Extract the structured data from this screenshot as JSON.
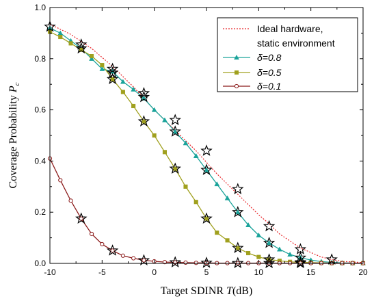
{
  "chart_data": {
    "type": "line",
    "xlabel": "Target SDINR T(dB)",
    "ylabel": "Coverage Probability P_c",
    "xlim": [
      -10,
      20
    ],
    "ylim": [
      0,
      1.0
    ],
    "x_ticks": [
      "-10",
      "-5",
      "0",
      "5",
      "10",
      "15",
      "20"
    ],
    "y_ticks": [
      "0.0",
      "0.2",
      "0.4",
      "0.6",
      "0.8",
      "1.0"
    ],
    "grid": false,
    "legend_position": "top-right",
    "series": [
      {
        "name": "Ideal hardware, static environment",
        "legend_lines": [
          "Ideal hardware,",
          "static environment"
        ],
        "color": "#e8262a",
        "style": "dotted",
        "marker": "none",
        "x": [
          -10,
          -8,
          -6,
          -4,
          -2,
          -1,
          0,
          2,
          4,
          5,
          6,
          8,
          10,
          11,
          12,
          14,
          16,
          17,
          18,
          20
        ],
        "y": [
          0.935,
          0.895,
          0.84,
          0.77,
          0.69,
          0.645,
          0.6,
          0.52,
          0.44,
          0.395,
          0.35,
          0.27,
          0.19,
          0.155,
          0.115,
          0.06,
          0.025,
          0.015,
          0.008,
          0.003
        ]
      },
      {
        "name": "δ=0.8",
        "color": "#1aa39a",
        "style": "solid",
        "marker": "triangle",
        "x": [
          -10,
          -9,
          -8,
          -7,
          -6,
          -5,
          -4,
          -3,
          -2,
          -1,
          0,
          1,
          2,
          3,
          4,
          5,
          6,
          7,
          8,
          9,
          10,
          11,
          12,
          13,
          14,
          15,
          16,
          17,
          18,
          19,
          20
        ],
        "y": [
          0.92,
          0.9,
          0.87,
          0.84,
          0.8,
          0.76,
          0.75,
          0.71,
          0.68,
          0.645,
          0.6,
          0.56,
          0.515,
          0.47,
          0.42,
          0.365,
          0.31,
          0.255,
          0.2,
          0.15,
          0.11,
          0.08,
          0.055,
          0.035,
          0.022,
          0.013,
          0.007,
          0.004,
          0.002,
          0.001,
          0.001
        ]
      },
      {
        "name": "δ=0.5",
        "color": "#a0a01e",
        "style": "solid",
        "marker": "square",
        "x": [
          -10,
          -9,
          -8,
          -7,
          -6,
          -5,
          -4,
          -3,
          -2,
          -1,
          0,
          1,
          2,
          3,
          4,
          5,
          6,
          7,
          8,
          9,
          10,
          11,
          12,
          13,
          14,
          15,
          16,
          17,
          18,
          19,
          20
        ],
        "y": [
          0.905,
          0.885,
          0.86,
          0.835,
          0.81,
          0.775,
          0.72,
          0.67,
          0.615,
          0.555,
          0.5,
          0.435,
          0.37,
          0.3,
          0.24,
          0.175,
          0.12,
          0.09,
          0.06,
          0.04,
          0.025,
          0.015,
          0.01,
          0.006,
          0.004,
          0.003,
          0.002,
          0.001,
          0.001,
          0.001,
          0.001
        ]
      },
      {
        "name": "δ=0.1",
        "color": "#8b1a1a",
        "style": "solid",
        "marker": "circle",
        "x": [
          -10,
          -9,
          -8,
          -7,
          -6,
          -5,
          -4,
          -3,
          -2,
          -1,
          0,
          1,
          2,
          3,
          4,
          5,
          6,
          7,
          8,
          9,
          10,
          11,
          12,
          13,
          14,
          15,
          16,
          17,
          18,
          19,
          20
        ],
        "y": [
          0.41,
          0.325,
          0.245,
          0.175,
          0.115,
          0.075,
          0.05,
          0.03,
          0.02,
          0.012,
          0.008,
          0.005,
          0.004,
          0.003,
          0.002,
          0.002,
          0.001,
          0.001,
          0.001,
          0.001,
          0.001,
          0.001,
          0.001,
          0.001,
          0.001,
          0.001,
          0.001,
          0.001,
          0.001,
          0.001,
          0.001
        ]
      },
      {
        "name": "Simulation stars",
        "show_in_legend": false,
        "color": "#000000",
        "style": "none",
        "marker": "star",
        "points": [
          {
            "x": -10,
            "y": 0.925
          },
          {
            "x": -7,
            "y": 0.855
          },
          {
            "x": -4,
            "y": 0.76
          },
          {
            "x": -1,
            "y": 0.665
          },
          {
            "x": 2,
            "y": 0.56
          },
          {
            "x": 5,
            "y": 0.44
          },
          {
            "x": 8,
            "y": 0.29
          },
          {
            "x": 11,
            "y": 0.145
          },
          {
            "x": 14,
            "y": 0.055
          },
          {
            "x": 17,
            "y": 0.015
          },
          {
            "x": -7,
            "y": 0.84
          },
          {
            "x": -4,
            "y": 0.745
          },
          {
            "x": -1,
            "y": 0.65
          },
          {
            "x": 2,
            "y": 0.515
          },
          {
            "x": 5,
            "y": 0.365
          },
          {
            "x": 8,
            "y": 0.2
          },
          {
            "x": 11,
            "y": 0.08
          },
          {
            "x": 14,
            "y": 0.022
          },
          {
            "x": -4,
            "y": 0.72
          },
          {
            "x": -1,
            "y": 0.555
          },
          {
            "x": 2,
            "y": 0.37
          },
          {
            "x": 5,
            "y": 0.175
          },
          {
            "x": 8,
            "y": 0.06
          },
          {
            "x": 11,
            "y": 0.015
          },
          {
            "x": 14,
            "y": 0.004
          },
          {
            "x": -7,
            "y": 0.175
          },
          {
            "x": -4,
            "y": 0.05
          },
          {
            "x": -1,
            "y": 0.012
          },
          {
            "x": 2,
            "y": 0.004
          },
          {
            "x": 5,
            "y": 0.002
          },
          {
            "x": 8,
            "y": 0.001
          },
          {
            "x": 11,
            "y": 0.001
          },
          {
            "x": 14,
            "y": 0.001
          }
        ]
      }
    ],
    "legend": [
      {
        "name": "Ideal hardware,",
        "line2": "static environment",
        "color": "#e8262a",
        "style": "dotted",
        "marker": "none"
      },
      {
        "name": "δ=0.8",
        "color": "#1aa39a",
        "style": "solid",
        "marker": "triangle"
      },
      {
        "name": "δ=0.5",
        "color": "#a0a01e",
        "style": "solid",
        "marker": "square"
      },
      {
        "name": "δ=0.1",
        "color": "#8b1a1a",
        "style": "solid",
        "marker": "circle"
      }
    ]
  }
}
